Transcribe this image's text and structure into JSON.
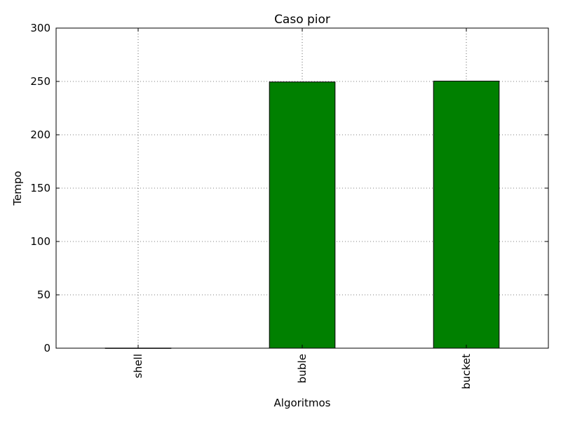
{
  "chart_data": {
    "type": "bar",
    "title": "Caso pior",
    "xlabel": "Algoritmos",
    "ylabel": "Tempo",
    "categories": [
      "shell",
      "buble",
      "bucket"
    ],
    "values": [
      0.1,
      249.5,
      250.3
    ],
    "ylim": [
      0,
      300
    ],
    "yticks": [
      0,
      50,
      100,
      150,
      200,
      250,
      300
    ],
    "grid": true,
    "legend": "none",
    "x_tick_rotation": "vertical",
    "bar_color": "#008000",
    "edge_color": "#000000"
  }
}
